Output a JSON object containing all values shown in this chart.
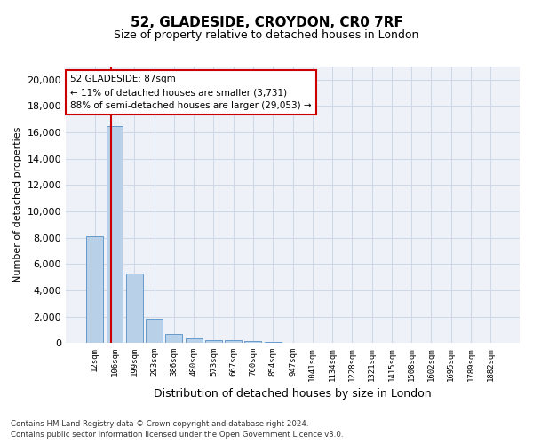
{
  "title": "52, GLADESIDE, CROYDON, CR0 7RF",
  "subtitle": "Size of property relative to detached houses in London",
  "xlabel": "Distribution of detached houses by size in London",
  "ylabel": "Number of detached properties",
  "categories": [
    "12sqm",
    "106sqm",
    "199sqm",
    "293sqm",
    "386sqm",
    "480sqm",
    "573sqm",
    "667sqm",
    "760sqm",
    "854sqm",
    "947sqm",
    "1041sqm",
    "1134sqm",
    "1228sqm",
    "1321sqm",
    "1415sqm",
    "1508sqm",
    "1602sqm",
    "1695sqm",
    "1789sqm",
    "1882sqm"
  ],
  "values": [
    8100,
    16500,
    5300,
    1850,
    700,
    330,
    230,
    200,
    150,
    80,
    40,
    20,
    15,
    10,
    8,
    5,
    4,
    3,
    2,
    2,
    1
  ],
  "bar_color": "#b8d0e8",
  "bar_edge_color": "#6699cc",
  "grid_color": "#d0d8e8",
  "background_color": "#eef2f8",
  "annotation_text": "52 GLADESIDE: 87sqm\n← 11% of detached houses are smaller (3,731)\n88% of semi-detached houses are larger (29,053) →",
  "annotation_box_color": "#ffffff",
  "annotation_box_edge": "#cc0000",
  "vline_color": "#cc0000",
  "footer_line1": "Contains HM Land Registry data © Crown copyright and database right 2024.",
  "footer_line2": "Contains public sector information licensed under the Open Government Licence v3.0.",
  "ylim": [
    0,
    21000
  ],
  "yticks": [
    0,
    2000,
    4000,
    6000,
    8000,
    10000,
    12000,
    14000,
    16000,
    18000,
    20000
  ]
}
